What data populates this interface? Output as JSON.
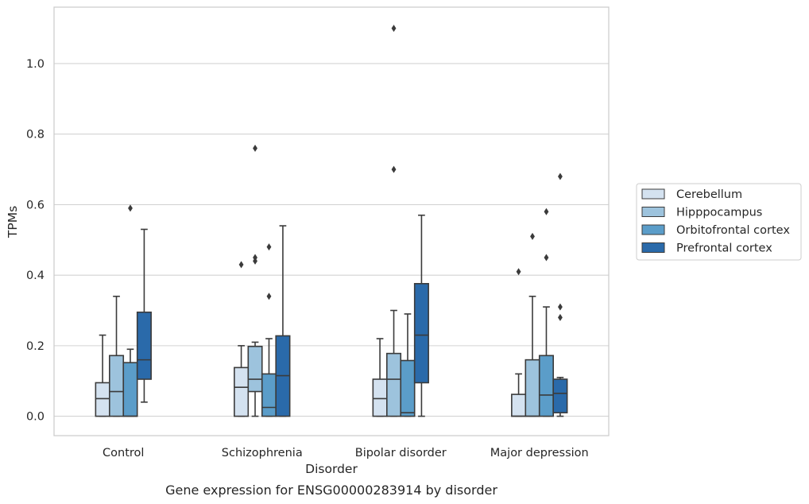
{
  "chart_data": {
    "type": "box",
    "caption": "Gene expression for ENSG00000283914 by disorder",
    "xlabel": "Disorder",
    "ylabel": "TPMs",
    "ylim": [
      -0.055,
      1.16
    ],
    "yticks": [
      "0.0",
      "0.2",
      "0.4",
      "0.6",
      "0.8",
      "1.0"
    ],
    "grid": true,
    "legend_position": "right",
    "categories": [
      "Control",
      "Schizophrenia",
      "Bipolar disorder",
      "Major depression"
    ],
    "series": [
      {
        "name": "Cerebellum",
        "color": "#d4e2f0",
        "boxes": [
          {
            "whislo": 0.0,
            "q1": 0.0,
            "med": 0.05,
            "q3": 0.095,
            "whishi": 0.23,
            "fliers": []
          },
          {
            "whislo": 0.0,
            "q1": 0.0,
            "med": 0.082,
            "q3": 0.138,
            "whishi": 0.2,
            "fliers": [
              0.43
            ]
          },
          {
            "whislo": 0.0,
            "q1": 0.0,
            "med": 0.05,
            "q3": 0.105,
            "whishi": 0.22,
            "fliers": []
          },
          {
            "whislo": 0.0,
            "q1": 0.0,
            "med": 0.0,
            "q3": 0.062,
            "whishi": 0.12,
            "fliers": [
              0.41
            ]
          }
        ]
      },
      {
        "name": "Hipppocampus",
        "color": "#9dc3dd",
        "boxes": [
          {
            "whislo": 0.0,
            "q1": 0.0,
            "med": 0.07,
            "q3": 0.172,
            "whishi": 0.34,
            "fliers": []
          },
          {
            "whislo": 0.0,
            "q1": 0.07,
            "med": 0.105,
            "q3": 0.198,
            "whishi": 0.21,
            "fliers": [
              0.44,
              0.45,
              0.76
            ]
          },
          {
            "whislo": 0.0,
            "q1": 0.0,
            "med": 0.105,
            "q3": 0.178,
            "whishi": 0.3,
            "fliers": [
              0.7,
              1.1
            ]
          },
          {
            "whislo": 0.0,
            "q1": 0.0,
            "med": 0.0,
            "q3": 0.16,
            "whishi": 0.34,
            "fliers": [
              0.51
            ]
          }
        ]
      },
      {
        "name": "Orbitofrontal cortex",
        "color": "#5b9dc9",
        "boxes": [
          {
            "whislo": 0.0,
            "q1": 0.0,
            "med": 0.0,
            "q3": 0.152,
            "whishi": 0.19,
            "fliers": [
              0.59
            ]
          },
          {
            "whislo": 0.0,
            "q1": 0.0,
            "med": 0.025,
            "q3": 0.12,
            "whishi": 0.22,
            "fliers": [
              0.34,
              0.48
            ]
          },
          {
            "whislo": 0.0,
            "q1": 0.0,
            "med": 0.01,
            "q3": 0.158,
            "whishi": 0.29,
            "fliers": []
          },
          {
            "whislo": 0.0,
            "q1": 0.0,
            "med": 0.06,
            "q3": 0.172,
            "whishi": 0.31,
            "fliers": [
              0.45,
              0.58
            ]
          }
        ]
      },
      {
        "name": "Prefrontal cortex",
        "color": "#2a6aaa",
        "boxes": [
          {
            "whislo": 0.04,
            "q1": 0.105,
            "med": 0.16,
            "q3": 0.295,
            "whishi": 0.53,
            "fliers": []
          },
          {
            "whislo": 0.0,
            "q1": 0.0,
            "med": 0.115,
            "q3": 0.228,
            "whishi": 0.54,
            "fliers": []
          },
          {
            "whislo": 0.0,
            "q1": 0.095,
            "med": 0.23,
            "q3": 0.376,
            "whishi": 0.57,
            "fliers": []
          },
          {
            "whislo": 0.0,
            "q1": 0.01,
            "med": 0.065,
            "q3": 0.105,
            "whishi": 0.11,
            "fliers": [
              0.28,
              0.31,
              0.68
            ]
          }
        ]
      }
    ]
  }
}
